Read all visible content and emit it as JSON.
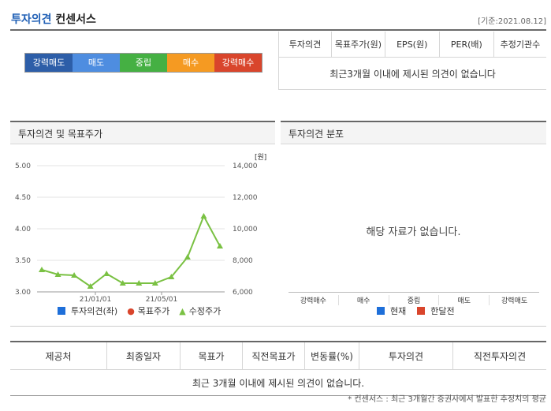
{
  "header": {
    "title_highlight": "투자의견",
    "title_rest": "컨센서스",
    "date": "[기준:2021.08.12]"
  },
  "opinion_bar": [
    {
      "label": "강력매도",
      "color": "#2d5ea8"
    },
    {
      "label": "매도",
      "color": "#4e8de0"
    },
    {
      "label": "중립",
      "color": "#45b043"
    },
    {
      "label": "매수",
      "color": "#f59a22"
    },
    {
      "label": "강력매수",
      "color": "#d9452c"
    }
  ],
  "consensus_table": {
    "columns": [
      "투자의견",
      "목표주가(원)",
      "EPS(원)",
      "PER(배)",
      "추정기관수"
    ],
    "empty_message": "최근3개월 이내에 제시된 의견이 없습니다"
  },
  "panel_chart": {
    "title": "투자의견 및 목표주가",
    "unit": "[원]",
    "legend": [
      {
        "label": "투자의견(좌)",
        "color": "#1e6fd9"
      },
      {
        "label": "목표주가",
        "color": "#d9452c"
      },
      {
        "label": "수정주가",
        "color": "#7ac143"
      }
    ]
  },
  "panel_dist": {
    "title": "투자의견 분포",
    "empty_message": "해당 자료가 없습니다.",
    "categories": [
      "강력매수",
      "매수",
      "중립",
      "매도",
      "강력매도"
    ],
    "legend": [
      {
        "label": "현재",
        "color": "#1e6fd9"
      },
      {
        "label": "한달전",
        "color": "#d9452c"
      }
    ]
  },
  "bottom_table": {
    "columns": [
      "제공처",
      "최종일자",
      "목표가",
      "직전목표가",
      "변동률(%)",
      "투자의견",
      "직전투자의견"
    ],
    "empty_message": "최근 3개월 이내에 제시된 의견이 없습니다."
  },
  "footnote": "* 컨센서스 : 최근 3개월간 증권사에서 발표한 추정치의 평균",
  "chart_data": {
    "type": "line",
    "x_tick_labels": [
      "21/01/01",
      "21/05/01"
    ],
    "y_left": {
      "ticks": [
        "5.00",
        "4.50",
        "4.00",
        "3.50",
        "3.00"
      ],
      "range": [
        3.0,
        5.0
      ]
    },
    "y_right": {
      "ticks": [
        "14,000",
        "12,000",
        "10,000",
        "8,000",
        "6,000"
      ],
      "range": [
        6000,
        14000
      ]
    },
    "series": [
      {
        "name": "수정주가",
        "axis": "right",
        "values": [
          7400,
          7100,
          7050,
          6350,
          7150,
          6550,
          6550,
          6550,
          6950,
          8200,
          10800,
          8900
        ]
      }
    ]
  }
}
